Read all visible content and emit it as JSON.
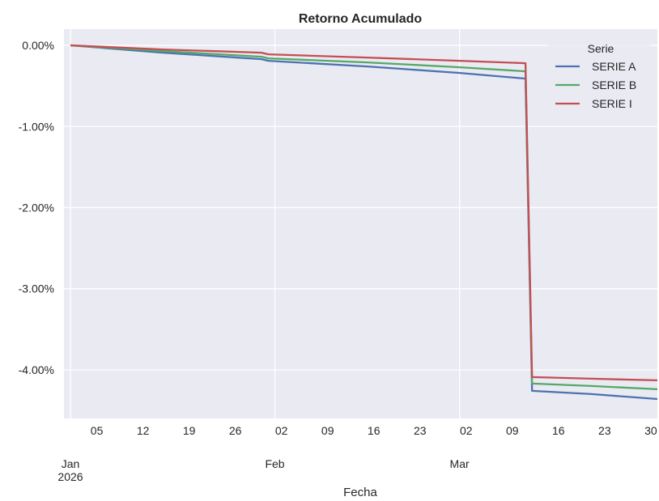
{
  "chart_data": {
    "type": "line",
    "title": "Retorno Acumulado",
    "xlabel": "Fecha",
    "ylabel": "",
    "x_start": "2026-01-01",
    "x_end": "2026-03-31",
    "ylim": [
      -4.6,
      0.2
    ],
    "y_ticks": [
      0,
      -1,
      -2,
      -3,
      -4
    ],
    "y_tick_labels": [
      "0.00%",
      "-1.00%",
      "-2.00%",
      "-3.00%",
      "-4.00%"
    ],
    "x_ticks": [
      {
        "date": "2026-01-01",
        "label": "Jan\n2026",
        "major": true
      },
      {
        "date": "2026-01-05",
        "label": "05",
        "major": false
      },
      {
        "date": "2026-01-12",
        "label": "12",
        "major": false
      },
      {
        "date": "2026-01-19",
        "label": "19",
        "major": false
      },
      {
        "date": "2026-01-26",
        "label": "26",
        "major": false
      },
      {
        "date": "2026-02-01",
        "label": "Feb",
        "major": true
      },
      {
        "date": "2026-02-02",
        "label": "02",
        "major": false
      },
      {
        "date": "2026-02-09",
        "label": "09",
        "major": false
      },
      {
        "date": "2026-02-16",
        "label": "16",
        "major": false
      },
      {
        "date": "2026-02-23",
        "label": "23",
        "major": false
      },
      {
        "date": "2026-03-01",
        "label": "Mar",
        "major": true
      },
      {
        "date": "2026-03-02",
        "label": "02",
        "major": false
      },
      {
        "date": "2026-03-09",
        "label": "09",
        "major": false
      },
      {
        "date": "2026-03-16",
        "label": "16",
        "major": false
      },
      {
        "date": "2026-03-23",
        "label": "23",
        "major": false
      },
      {
        "date": "2026-03-30",
        "label": "30",
        "major": false
      }
    ],
    "grid": true,
    "legend": {
      "title": "Serie",
      "placement": "top-right"
    },
    "series": [
      {
        "name": "SERIE A",
        "color": "#4c72b0",
        "points": [
          [
            "2026-01-01",
            0.0
          ],
          [
            "2026-01-15",
            -0.09
          ],
          [
            "2026-01-30",
            -0.17
          ],
          [
            "2026-01-31",
            -0.19
          ],
          [
            "2026-02-15",
            -0.26
          ],
          [
            "2026-03-01",
            -0.34
          ],
          [
            "2026-03-11",
            -0.41
          ],
          [
            "2026-03-12",
            -4.26
          ],
          [
            "2026-03-21",
            -4.3
          ],
          [
            "2026-03-31",
            -4.36
          ]
        ]
      },
      {
        "name": "SERIE B",
        "color": "#55a868",
        "points": [
          [
            "2026-01-01",
            0.0
          ],
          [
            "2026-01-15",
            -0.07
          ],
          [
            "2026-01-30",
            -0.14
          ],
          [
            "2026-01-31",
            -0.16
          ],
          [
            "2026-02-15",
            -0.21
          ],
          [
            "2026-03-01",
            -0.27
          ],
          [
            "2026-03-11",
            -0.32
          ],
          [
            "2026-03-12",
            -4.17
          ],
          [
            "2026-03-21",
            -4.2
          ],
          [
            "2026-03-31",
            -4.24
          ]
        ]
      },
      {
        "name": "SERIE I",
        "color": "#c44e52",
        "points": [
          [
            "2026-01-01",
            0.0
          ],
          [
            "2026-01-15",
            -0.05
          ],
          [
            "2026-01-30",
            -0.09
          ],
          [
            "2026-01-31",
            -0.11
          ],
          [
            "2026-02-15",
            -0.15
          ],
          [
            "2026-03-01",
            -0.19
          ],
          [
            "2026-03-11",
            -0.22
          ],
          [
            "2026-03-12",
            -4.09
          ],
          [
            "2026-03-21",
            -4.11
          ],
          [
            "2026-03-31",
            -4.13
          ]
        ]
      }
    ]
  }
}
